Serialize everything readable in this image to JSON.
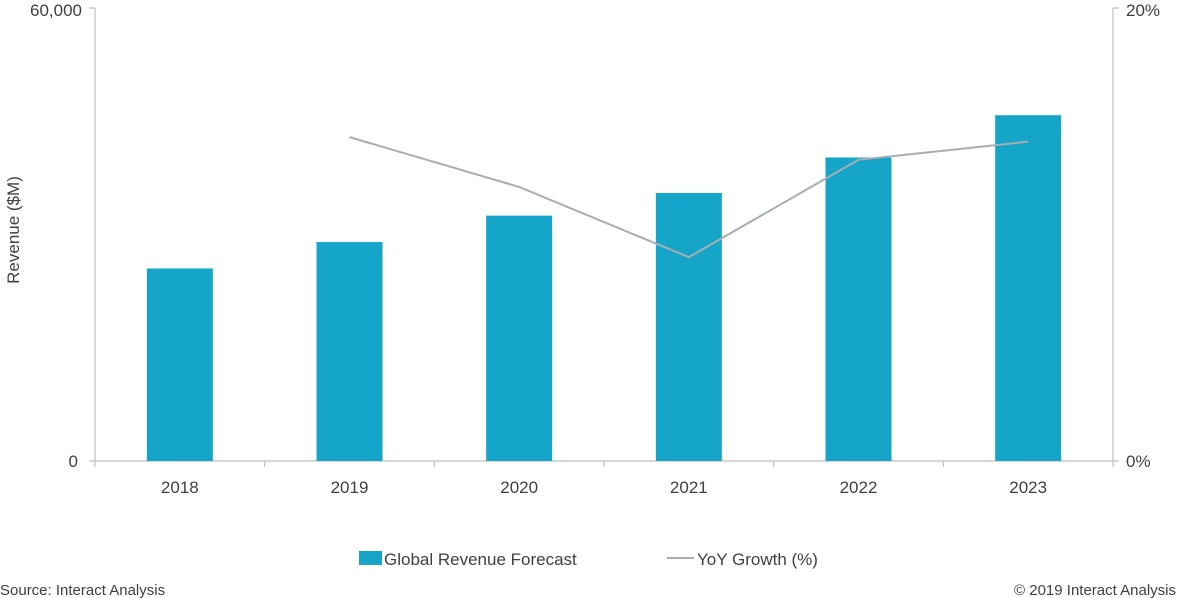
{
  "chart_data": {
    "type": "bar",
    "title": "",
    "xlabel": "",
    "ylabel": "Revenue ($M)",
    "ylim": [
      0,
      60000
    ],
    "y2lim": [
      0,
      20
    ],
    "y_ticks": [
      "60,000",
      "0"
    ],
    "y2_ticks": [
      "20%",
      "0%"
    ],
    "categories": [
      "2018",
      "2019",
      "2020",
      "2021",
      "2022",
      "2023"
    ],
    "series": [
      {
        "name": "Global Revenue Forecast",
        "type": "bar",
        "axis": "left",
        "color": "#14a5c8",
        "values": [
          25500,
          29000,
          32500,
          35500,
          40200,
          45800
        ]
      },
      {
        "name": "YoY Growth (%)",
        "type": "line",
        "axis": "right",
        "color": "#a6aeb2",
        "values": [
          null,
          14.3,
          12.1,
          9.0,
          13.3,
          14.1
        ]
      }
    ],
    "legend_position": "bottom",
    "grid": false
  },
  "footer": {
    "source": "Source: Interact Analysis",
    "copyright": "© 2019 Interact Analysis"
  },
  "colors": {
    "bar": "#14a5c8",
    "line": "#a6aeb2",
    "axis": "#bfbfbf",
    "text": "#404040"
  }
}
